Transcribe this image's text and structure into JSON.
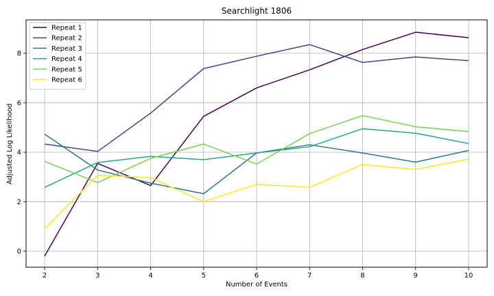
{
  "chart_data": {
    "type": "line",
    "title": "Searchlight 1806",
    "xlabel": "Number of Events",
    "ylabel": "Adjusted Log Likelihood",
    "x": [
      2,
      3,
      4,
      5,
      6,
      7,
      8,
      9,
      10
    ],
    "xticks": [
      "2",
      "3",
      "4",
      "5",
      "6",
      "7",
      "8",
      "9",
      "10"
    ],
    "yticks": [
      "0",
      "2",
      "4",
      "6",
      "8"
    ],
    "xlim": [
      1.65,
      10.35
    ],
    "ylim": [
      -0.65,
      9.35
    ],
    "grid": true,
    "legend": "top-left",
    "series": [
      {
        "name": "Repeat 1",
        "color": "#440154",
        "values": [
          -0.2,
          3.55,
          2.65,
          5.45,
          6.6,
          7.33,
          8.15,
          8.85,
          8.63
        ]
      },
      {
        "name": "Repeat 2",
        "color": "#414487",
        "values": [
          4.33,
          4.03,
          5.58,
          7.38,
          7.88,
          8.35,
          7.63,
          7.85,
          7.7
        ]
      },
      {
        "name": "Repeat 3",
        "color": "#2a788e",
        "values": [
          4.73,
          3.28,
          2.75,
          2.32,
          3.97,
          4.3,
          3.97,
          3.6,
          4.07
        ]
      },
      {
        "name": "Repeat 4",
        "color": "#22a884",
        "values": [
          2.58,
          3.58,
          3.83,
          3.7,
          3.97,
          4.22,
          4.95,
          4.77,
          4.35
        ]
      },
      {
        "name": "Repeat 5",
        "color": "#7ad151",
        "values": [
          3.63,
          2.77,
          3.75,
          4.33,
          3.52,
          4.75,
          5.48,
          5.03,
          4.83
        ]
      },
      {
        "name": "Repeat 6",
        "color": "#fde725",
        "values": [
          0.9,
          3.07,
          2.97,
          2.0,
          2.7,
          2.58,
          3.5,
          3.3,
          3.72
        ]
      }
    ]
  }
}
